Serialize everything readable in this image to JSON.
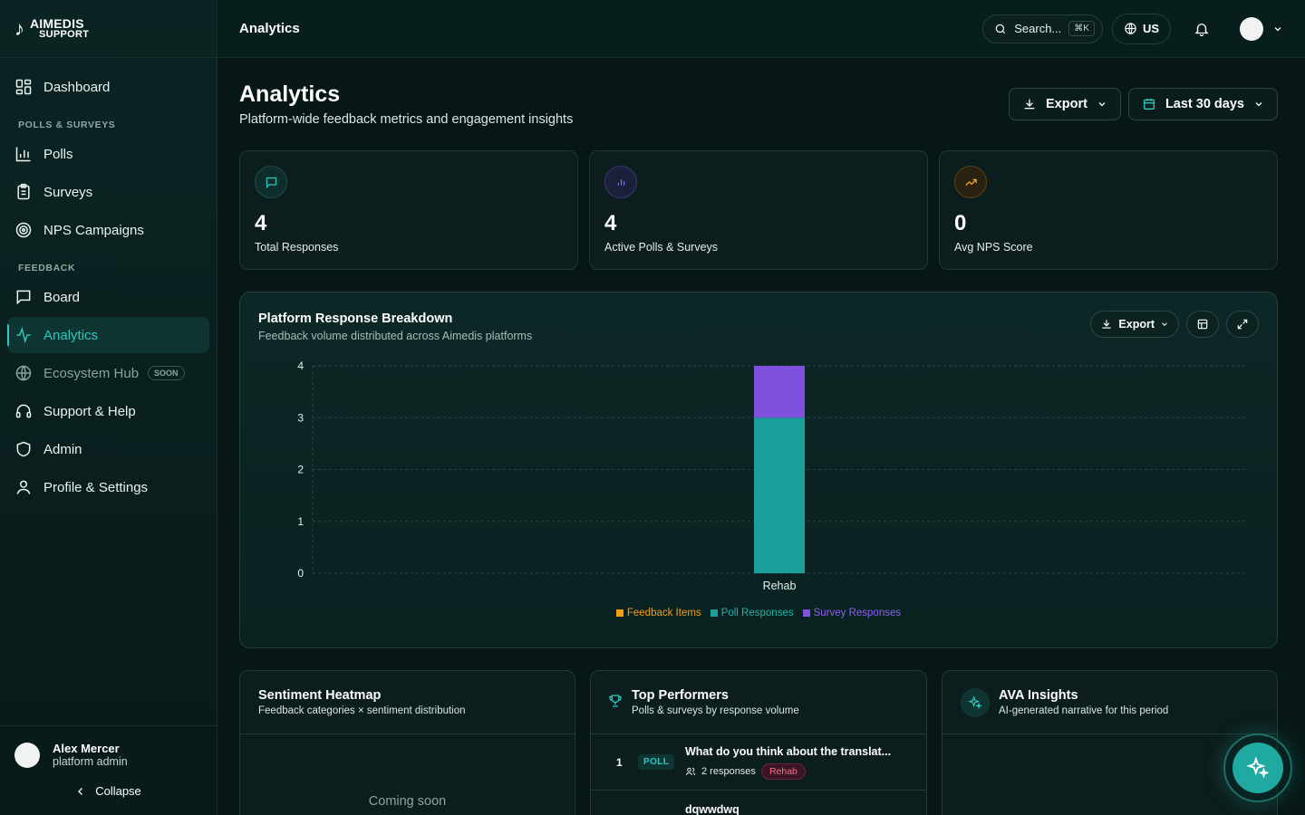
{
  "app": {
    "logo_line1": "AIMEDIS",
    "logo_line2": "SUPPORT"
  },
  "sidebar": {
    "dashboard": "Dashboard",
    "section_polls": "POLLS & SURVEYS",
    "polls": "Polls",
    "surveys": "Surveys",
    "nps": "NPS Campaigns",
    "section_feedback": "FEEDBACK",
    "board": "Board",
    "analytics": "Analytics",
    "ecosystem": "Ecosystem Hub",
    "soon": "SOON",
    "support": "Support & Help",
    "admin": "Admin",
    "profile": "Profile & Settings",
    "user_name": "Alex Mercer",
    "user_role": "platform admin",
    "collapse": "Collapse"
  },
  "topbar": {
    "title": "Analytics",
    "search": "Search...",
    "shortcut": "⌘K",
    "lang": "US"
  },
  "header": {
    "title": "Analytics",
    "subtitle": "Platform-wide feedback metrics and engagement insights",
    "export": "Export",
    "range": "Last 30 days"
  },
  "stats": [
    {
      "value": "4",
      "label": "Total Responses"
    },
    {
      "value": "4",
      "label": "Active Polls & Surveys"
    },
    {
      "value": "0",
      "label": "Avg NPS Score"
    }
  ],
  "chart_card": {
    "title": "Platform Response Breakdown",
    "subtitle": "Feedback volume distributed across Aimedis platforms",
    "export": "Export"
  },
  "chart_data": {
    "type": "bar",
    "stacked": true,
    "categories": [
      "Rehab"
    ],
    "series": [
      {
        "name": "Feedback Items",
        "values": [
          0
        ],
        "color": "#f59e0b"
      },
      {
        "name": "Poll Responses",
        "values": [
          3
        ],
        "color": "#1a9f9c"
      },
      {
        "name": "Survey Responses",
        "values": [
          1
        ],
        "color": "#7e52dc"
      }
    ],
    "ylim": [
      0,
      4
    ],
    "yticks": [
      "0",
      "1",
      "2",
      "3",
      "4"
    ],
    "grid": true,
    "legend": "bottom"
  },
  "sentiment": {
    "title": "Sentiment Heatmap",
    "subtitle": "Feedback categories × sentiment distribution",
    "coming": "Coming soon"
  },
  "performers": {
    "title": "Top Performers",
    "subtitle": "Polls & surveys by response volume",
    "rows": [
      {
        "rank": "1",
        "type": "POLL",
        "title": "What do you think about the translat...",
        "responses": "2 responses",
        "platform": "Rehab"
      },
      {
        "title": "dqwwdwq"
      }
    ]
  },
  "ava": {
    "title": "AVA Insights",
    "subtitle": "AI-generated narrative for this period"
  },
  "colors": {
    "accent": "#2cc7bd",
    "background": "#071716"
  }
}
